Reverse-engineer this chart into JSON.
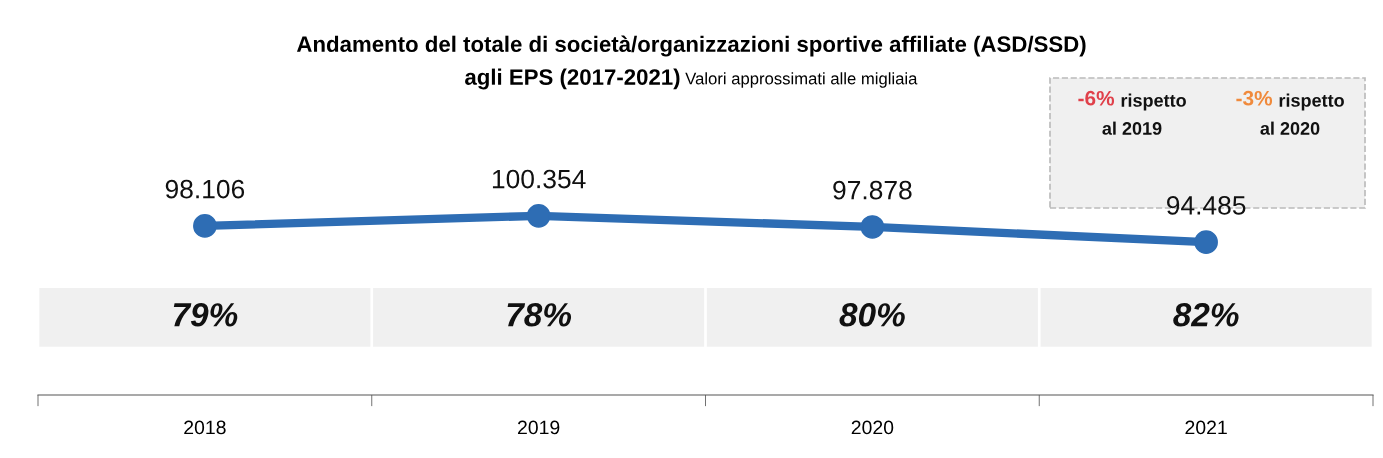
{
  "chart_data": {
    "type": "line",
    "title": "Andamento del totale di società/organizzazioni sportive affiliate (ASD/SSD)\nagli EPS (2017-2021)",
    "subtitle": "Valori approssimati alle migliaia",
    "categories": [
      "2018",
      "2019",
      "2020",
      "2021"
    ],
    "series": [
      {
        "color": "#2e6db4",
        "values": [
          98106,
          100354,
          97878,
          94485
        ],
        "value_labels": [
          "98.106",
          "100.354",
          "97.878",
          "94.485"
        ]
      }
    ],
    "tick_labels": "x",
    "marker": "circle",
    "line_style": "solid",
    "grid": false,
    "legend": false,
    "annotations": [
      "79%",
      "78%",
      "80%",
      "82%",
      "-6% rispetto al 2019",
      "-3% rispetto al 2020"
    ]
  }
}
